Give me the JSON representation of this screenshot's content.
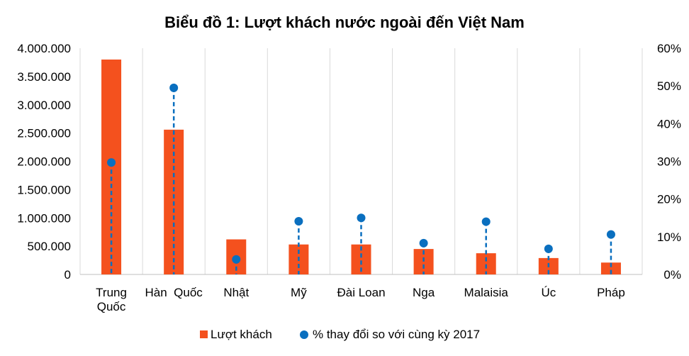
{
  "chart_data": {
    "type": "bar",
    "title": "Biểu đồ 1: Lượt khách nước ngoài đến Việt Nam",
    "categories": [
      [
        "Trung",
        "Quốc"
      ],
      [
        "Hàn  Quốc"
      ],
      [
        "Nhật"
      ],
      [
        "Mỹ"
      ],
      [
        "Đài Loan"
      ],
      [
        "Nga"
      ],
      [
        "Malaisia"
      ],
      [
        "Úc"
      ],
      [
        "Pháp"
      ]
    ],
    "series": [
      {
        "name": "Lượt khách",
        "type": "bar",
        "axis": "left",
        "color": "#f4511e",
        "values": [
          3800000,
          2560000,
          620000,
          530000,
          530000,
          450000,
          375000,
          290000,
          210000
        ]
      },
      {
        "name": "% thay đổi so với cùng kỳ 2017",
        "type": "lollipop",
        "axis": "right",
        "color": "#0a6fbf",
        "values": [
          0.297,
          0.495,
          0.04,
          0.141,
          0.15,
          0.083,
          0.14,
          0.068,
          0.106
        ]
      }
    ],
    "y_left": {
      "ylim": [
        0,
        4000000
      ],
      "ticks": [
        "0",
        "500.000",
        "1.000.000",
        "1.500.000",
        "2.000.000",
        "2.500.000",
        "3.000.000",
        "3.500.000",
        "4.000.000"
      ]
    },
    "y_right": {
      "ylim": [
        0,
        0.6
      ],
      "ticks": [
        "0%",
        "10%",
        "20%",
        "30%",
        "40%",
        "50%",
        "60%"
      ]
    },
    "grid": "vertical category separators",
    "legend": "bottom-center"
  }
}
